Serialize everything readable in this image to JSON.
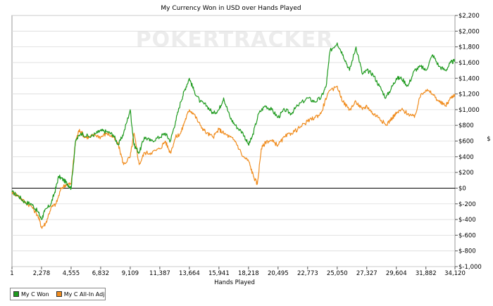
{
  "chart_data": {
    "type": "line",
    "title": "My Currency Won in USD over Hands Played",
    "xlabel": "Hands Played",
    "ylabel": "$",
    "watermark": "POKERTRACKER",
    "x_ticks": [
      "1",
      "2,278",
      "4,555",
      "6,832",
      "9,109",
      "11,387",
      "13,664",
      "15,941",
      "18,218",
      "20,495",
      "22,773",
      "25,050",
      "27,327",
      "29,604",
      "31,882",
      "34,120"
    ],
    "y_ticks": [
      "$2,200",
      "$2,000",
      "$1,800",
      "$1,600",
      "$1,400",
      "$1,200",
      "$1,000",
      "$800",
      "$600",
      "$400",
      "$200",
      "$0",
      "$-200",
      "$-400",
      "$-600",
      "$-800",
      "$-1,000"
    ],
    "xlim": [
      1,
      34120
    ],
    "ylim": [
      -1000,
      2200
    ],
    "grid": true,
    "legend_position": "bottom-left",
    "series": [
      {
        "name": "My C Won",
        "color": "#1e9a1e",
        "points": [
          [
            1,
            -50
          ],
          [
            500,
            -100
          ],
          [
            1000,
            -180
          ],
          [
            1500,
            -200
          ],
          [
            2000,
            -300
          ],
          [
            2278,
            -400
          ],
          [
            2500,
            -300
          ],
          [
            3000,
            -200
          ],
          [
            3300,
            -50
          ],
          [
            3600,
            150
          ],
          [
            4000,
            100
          ],
          [
            4300,
            50
          ],
          [
            4555,
            0
          ],
          [
            4900,
            600
          ],
          [
            5300,
            700
          ],
          [
            6000,
            650
          ],
          [
            6500,
            700
          ],
          [
            6832,
            730
          ],
          [
            7300,
            720
          ],
          [
            7800,
            680
          ],
          [
            8200,
            550
          ],
          [
            8600,
            700
          ],
          [
            9109,
            1000
          ],
          [
            9400,
            550
          ],
          [
            9800,
            450
          ],
          [
            10200,
            650
          ],
          [
            10700,
            600
          ],
          [
            11387,
            650
          ],
          [
            11800,
            700
          ],
          [
            12200,
            600
          ],
          [
            12600,
            850
          ],
          [
            13000,
            1100
          ],
          [
            13300,
            1250
          ],
          [
            13664,
            1400
          ],
          [
            14000,
            1250
          ],
          [
            14500,
            1100
          ],
          [
            15000,
            1050
          ],
          [
            15500,
            950
          ],
          [
            15941,
            1000
          ],
          [
            16300,
            1150
          ],
          [
            16800,
            900
          ],
          [
            17200,
            800
          ],
          [
            17800,
            700
          ],
          [
            18218,
            550
          ],
          [
            18500,
            650
          ],
          [
            19000,
            950
          ],
          [
            19500,
            1050
          ],
          [
            20000,
            1000
          ],
          [
            20495,
            900
          ],
          [
            21000,
            1000
          ],
          [
            21500,
            950
          ],
          [
            22000,
            1050
          ],
          [
            22773,
            1150
          ],
          [
            23300,
            1100
          ],
          [
            23800,
            1150
          ],
          [
            24200,
            1300
          ],
          [
            24500,
            1750
          ],
          [
            25050,
            1850
          ],
          [
            25500,
            1700
          ],
          [
            26000,
            1500
          ],
          [
            26500,
            1800
          ],
          [
            27000,
            1450
          ],
          [
            27327,
            1500
          ],
          [
            27800,
            1450
          ],
          [
            28300,
            1300
          ],
          [
            28800,
            1150
          ],
          [
            29300,
            1300
          ],
          [
            29604,
            1400
          ],
          [
            30000,
            1400
          ],
          [
            30500,
            1300
          ],
          [
            31000,
            1500
          ],
          [
            31500,
            1550
          ],
          [
            31882,
            1500
          ],
          [
            32400,
            1700
          ],
          [
            32900,
            1550
          ],
          [
            33400,
            1500
          ],
          [
            33800,
            1600
          ],
          [
            34120,
            1620
          ]
        ]
      },
      {
        "name": "My C All-In Adj",
        "color": "#f08c1e",
        "points": [
          [
            1,
            -50
          ],
          [
            500,
            -100
          ],
          [
            1000,
            -180
          ],
          [
            1500,
            -230
          ],
          [
            2000,
            -350
          ],
          [
            2278,
            -500
          ],
          [
            2600,
            -450
          ],
          [
            3000,
            -250
          ],
          [
            3400,
            -200
          ],
          [
            3800,
            0
          ],
          [
            4200,
            50
          ],
          [
            4555,
            50
          ],
          [
            4900,
            600
          ],
          [
            5200,
            750
          ],
          [
            5600,
            650
          ],
          [
            6000,
            650
          ],
          [
            6400,
            680
          ],
          [
            6832,
            650
          ],
          [
            7300,
            700
          ],
          [
            7800,
            650
          ],
          [
            8200,
            550
          ],
          [
            8600,
            300
          ],
          [
            9109,
            400
          ],
          [
            9400,
            700
          ],
          [
            9800,
            300
          ],
          [
            10200,
            450
          ],
          [
            10700,
            450
          ],
          [
            11387,
            500
          ],
          [
            11800,
            600
          ],
          [
            12200,
            450
          ],
          [
            12600,
            650
          ],
          [
            13000,
            700
          ],
          [
            13300,
            850
          ],
          [
            13664,
            1000
          ],
          [
            14000,
            950
          ],
          [
            14500,
            800
          ],
          [
            15000,
            700
          ],
          [
            15500,
            650
          ],
          [
            15941,
            750
          ],
          [
            16300,
            700
          ],
          [
            16800,
            650
          ],
          [
            17200,
            600
          ],
          [
            17800,
            400
          ],
          [
            18218,
            350
          ],
          [
            18600,
            150
          ],
          [
            18900,
            50
          ],
          [
            19200,
            500
          ],
          [
            19600,
            600
          ],
          [
            20000,
            600
          ],
          [
            20495,
            550
          ],
          [
            21000,
            650
          ],
          [
            21500,
            700
          ],
          [
            22000,
            750
          ],
          [
            22773,
            850
          ],
          [
            23300,
            900
          ],
          [
            23800,
            950
          ],
          [
            24300,
            1200
          ],
          [
            25050,
            1300
          ],
          [
            25500,
            1100
          ],
          [
            26000,
            1000
          ],
          [
            26500,
            1100
          ],
          [
            27000,
            1000
          ],
          [
            27327,
            1050
          ],
          [
            27800,
            950
          ],
          [
            28300,
            900
          ],
          [
            28800,
            800
          ],
          [
            29300,
            900
          ],
          [
            29604,
            950
          ],
          [
            30000,
            1000
          ],
          [
            30500,
            950
          ],
          [
            31000,
            900
          ],
          [
            31500,
            1200
          ],
          [
            31882,
            1250
          ],
          [
            32400,
            1200
          ],
          [
            32900,
            1100
          ],
          [
            33400,
            1050
          ],
          [
            33800,
            1150
          ],
          [
            34120,
            1200
          ]
        ]
      }
    ]
  }
}
